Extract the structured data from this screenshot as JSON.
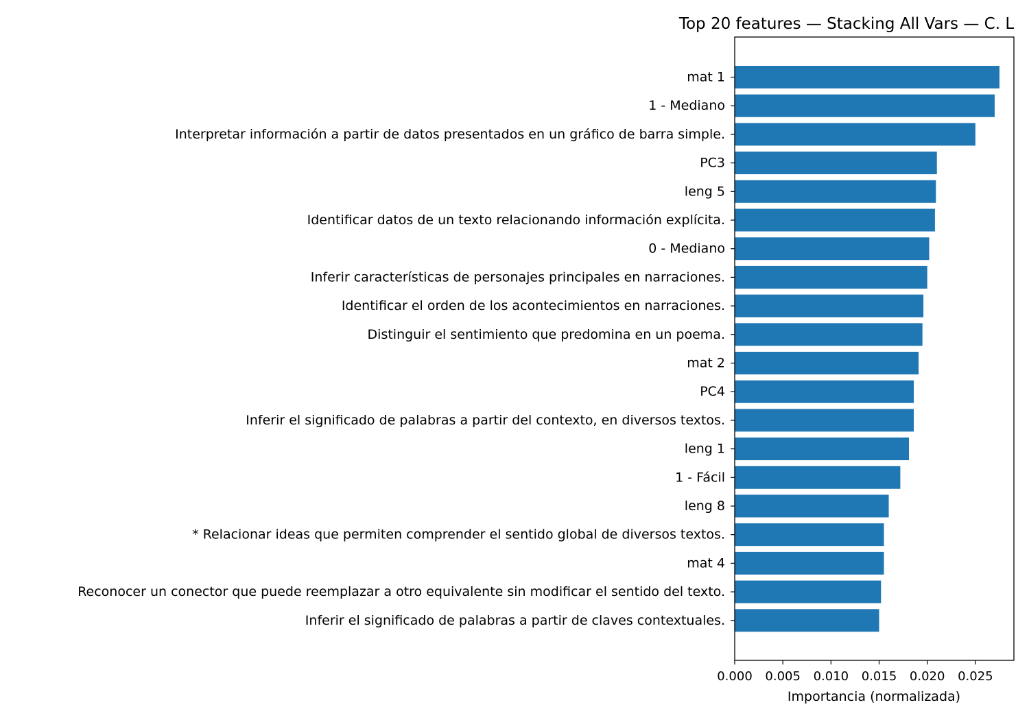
{
  "chart_data": {
    "type": "bar",
    "orientation": "horizontal",
    "title": "Top 20 features — Stacking All Vars — C. L",
    "xlabel": "Importancia (normalizada)",
    "ylabel": "",
    "xlim": [
      0,
      0.029
    ],
    "xticks": [
      0.0,
      0.005,
      0.01,
      0.015,
      0.02,
      0.025
    ],
    "xtick_labels": [
      "0.000",
      "0.005",
      "0.010",
      "0.015",
      "0.020",
      "0.025"
    ],
    "bar_color": "#1f77b4",
    "grid": false,
    "categories": [
      "mat 1",
      "1 - Mediano",
      "Interpretar información a partir de datos presentados en un gráfico de barra simple.",
      "PC3",
      "leng 5",
      "Identificar datos de un texto relacionando información explícita.",
      "0 - Mediano",
      "Inferir características de personajes principales en narraciones.",
      "Identificar el orden de los acontecimientos en narraciones.",
      "Distinguir el sentimiento que predomina en un poema.",
      "mat 2",
      "PC4",
      "Inferir el significado de palabras a partir del contexto, en diversos textos.",
      "leng 1",
      "1 - Fácil",
      "leng 8",
      "* Relacionar ideas que permiten comprender el sentido global de diversos textos.",
      "mat 4",
      "Reconocer un conector que puede reemplazar a otro equivalente sin modificar el sentido del texto.",
      "Inferir el significado de palabras a partir de claves contextuales."
    ],
    "values": [
      0.0275,
      0.027,
      0.025,
      0.021,
      0.0209,
      0.0208,
      0.0202,
      0.02,
      0.0196,
      0.0195,
      0.0191,
      0.0186,
      0.0186,
      0.0181,
      0.0172,
      0.016,
      0.0155,
      0.0155,
      0.0152,
      0.015
    ]
  }
}
